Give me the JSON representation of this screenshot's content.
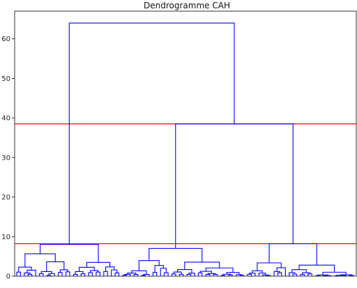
{
  "chart_data": {
    "type": "dendrogram",
    "title": "Dendrogramme CAH",
    "ylim": [
      0,
      67
    ],
    "yticks": [
      "0",
      "10",
      "20",
      "30",
      "40",
      "50",
      "60"
    ],
    "link_color": "#0000ff",
    "cut_color": "#ff0000",
    "cut_lines": [
      38.5,
      8.2
    ],
    "root_height": 64,
    "groups": [
      {
        "height": 8.0,
        "merge_with_next_at": 64
      },
      {
        "height": 7.0,
        "merge_with_next_at": 38.5
      },
      {
        "height": 8.2
      }
    ]
  }
}
